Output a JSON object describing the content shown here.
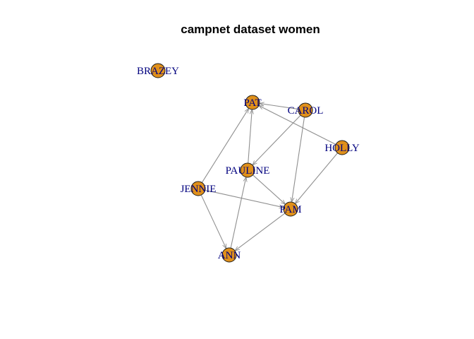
{
  "title": "campnet dataset women",
  "colors": {
    "node_fill": "#E0901A",
    "node_stroke": "#1a1a1a",
    "edge": "#8f8f8f",
    "label": "#00007f"
  },
  "nodes": [
    {
      "id": "BRAZEY",
      "label": "BRAZEY"
    },
    {
      "id": "PAT",
      "label": "PAT"
    },
    {
      "id": "CAROL",
      "label": "CAROL"
    },
    {
      "id": "HOLLY",
      "label": "HOLLY"
    },
    {
      "id": "PAULINE",
      "label": "PAULINE"
    },
    {
      "id": "JENNIE",
      "label": "JENNIE"
    },
    {
      "id": "PAM",
      "label": "PAM"
    },
    {
      "id": "ANN",
      "label": "ANN"
    }
  ],
  "edges": [
    {
      "from": "CAROL",
      "to": "PAT"
    },
    {
      "from": "HOLLY",
      "to": "PAT"
    },
    {
      "from": "PAULINE",
      "to": "PAT"
    },
    {
      "from": "JENNIE",
      "to": "PAT"
    },
    {
      "from": "CAROL",
      "to": "PAULINE"
    },
    {
      "from": "CAROL",
      "to": "PAM"
    },
    {
      "from": "HOLLY",
      "to": "PAM"
    },
    {
      "from": "PAULINE",
      "to": "PAM"
    },
    {
      "from": "JENNIE",
      "to": "PAM"
    },
    {
      "from": "JENNIE",
      "to": "ANN"
    },
    {
      "from": "ANN",
      "to": "PAULINE"
    },
    {
      "from": "PAM",
      "to": "ANN"
    }
  ]
}
